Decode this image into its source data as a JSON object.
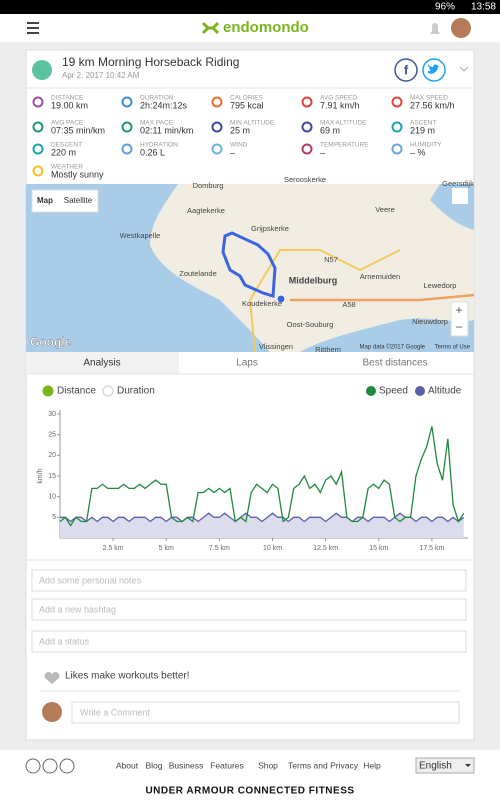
{
  "status_bar": {
    "battery": "96%",
    "time": "13:58"
  },
  "header": {
    "logo": "endomondo"
  },
  "workout": {
    "title": "19 km Morning Horseback Riding",
    "date": "Apr 2, 2017 10:42 AM",
    "stats": [
      {
        "label": "DISTANCE",
        "value": "19.00 km"
      },
      {
        "label": "DURATION",
        "value": "2h:24m:12s"
      },
      {
        "label": "CALORIES",
        "value": "795 kcal"
      },
      {
        "label": "AVG SPEED",
        "value": "7.91 km/h"
      },
      {
        "label": "MAX SPEED",
        "value": "27.56 km/h"
      },
      {
        "label": "AVG PACE",
        "value": "07:35 min/km"
      },
      {
        "label": "MAX PACE",
        "value": "02:11 min/km"
      },
      {
        "label": "MIN ALTITUDE",
        "value": "25 m"
      },
      {
        "label": "MAX ALTITUDE",
        "value": "69 m"
      },
      {
        "label": "ASCENT",
        "value": "219 m"
      },
      {
        "label": "DESCENT",
        "value": "220 m"
      },
      {
        "label": "HYDRATION",
        "value": "0.26 L"
      },
      {
        "label": "WIND",
        "value": "–"
      },
      {
        "label": "TEMPERATURE",
        "value": "–"
      },
      {
        "label": "HUMIDITY",
        "value": "– %"
      },
      {
        "label": "WEATHER",
        "value": "Mostly sunny"
      }
    ]
  },
  "map": {
    "tabs": [
      "Map",
      "Satellite"
    ],
    "labels": [
      "Domburg",
      "Serooskerke",
      "Veere",
      "Aagtekerke",
      "Grijpskerke",
      "Westkapelle",
      "Zoutelande",
      "Middelburg",
      "Arnemuiden",
      "Lewedorp",
      "Koudekerke",
      "Oost-Souburg",
      "Nieuwdorp",
      "Vlissingen",
      "Ritthem",
      "Geersdijk",
      "N57",
      "A58"
    ],
    "attribution": "Map data ©2017 Google",
    "terms": "Terms of Use",
    "logo": "Google"
  },
  "tabs": [
    "Analysis",
    "Laps",
    "Best distances"
  ],
  "x_modes": [
    "Distance",
    "Duration"
  ],
  "chart_data": {
    "type": "line",
    "y_label": "km/h",
    "x": [
      0,
      0.25,
      0.5,
      0.75,
      1,
      1.25,
      1.5,
      1.75,
      2,
      2.25,
      2.5,
      2.75,
      3,
      3.25,
      3.5,
      3.75,
      4,
      4.25,
      4.5,
      4.75,
      5,
      5.25,
      5.5,
      5.75,
      6,
      6.25,
      6.5,
      6.75,
      7,
      7.25,
      7.5,
      7.75,
      8,
      8.25,
      8.5,
      8.75,
      9,
      9.25,
      9.5,
      9.75,
      10,
      10.25,
      10.5,
      10.75,
      11,
      11.25,
      11.5,
      11.75,
      12,
      12.25,
      12.5,
      12.75,
      13,
      13.25,
      13.5,
      13.75,
      14,
      14.25,
      14.5,
      14.75,
      15,
      15.25,
      15.5,
      15.75,
      16,
      16.25,
      16.5,
      16.75,
      17,
      17.25,
      17.5,
      17.75,
      18,
      18.25,
      18.5,
      18.75,
      19
    ],
    "series": [
      {
        "name": "Speed",
        "color": "#1e8a3c",
        "values": [
          4,
          5,
          3,
          5,
          4,
          4,
          12,
          12,
          13,
          12,
          12,
          12,
          13,
          12,
          12,
          13,
          12,
          13,
          14,
          13,
          13,
          5,
          4,
          4,
          5,
          4,
          11,
          11,
          12,
          11,
          12,
          11,
          12,
          4,
          5,
          4,
          11,
          13,
          12,
          11,
          13,
          12,
          4,
          5,
          12,
          13,
          15,
          12,
          13,
          11,
          14,
          15,
          13,
          16,
          5,
          4,
          4,
          5,
          12,
          13,
          12,
          14,
          13,
          5,
          4,
          5,
          5,
          15,
          19,
          22,
          27,
          18,
          14,
          24,
          8,
          4,
          6
        ]
      },
      {
        "name": "Altitude",
        "color": "#5b60a8",
        "values": [
          5,
          5,
          4,
          5,
          5,
          4,
          5,
          4,
          5,
          5,
          4,
          5,
          5,
          4,
          5,
          5,
          5,
          4,
          5,
          5,
          4,
          5,
          5,
          4,
          5,
          5,
          4,
          5,
          6,
          5,
          5,
          6,
          5,
          4,
          5,
          6,
          5,
          5,
          4,
          5,
          6,
          5,
          5,
          4,
          5,
          5,
          4,
          5,
          5,
          5,
          4,
          5,
          6,
          5,
          5,
          4,
          5,
          5,
          4,
          5,
          5,
          5,
          4,
          5,
          6,
          5,
          5,
          4,
          5,
          5,
          4,
          5,
          5,
          4,
          5,
          4,
          5
        ]
      }
    ],
    "xlim": [
      0,
      19.2
    ],
    "ylim": [
      0,
      30
    ],
    "xticks": [
      {
        "value": 2.5,
        "label": "2.5 km"
      },
      {
        "value": 5,
        "label": "5 km"
      },
      {
        "value": 7.5,
        "label": "7.5 km"
      },
      {
        "value": 10,
        "label": "10 km"
      },
      {
        "value": 12.5,
        "label": "12.5 km"
      },
      {
        "value": 15,
        "label": "15 km"
      },
      {
        "value": 17.5,
        "label": "17.5 km"
      }
    ],
    "yticks": [
      5,
      10,
      15,
      20,
      25,
      30
    ]
  },
  "inputs": [
    "Add some personal notes",
    "Add a new hashtag",
    "Add a status"
  ],
  "likes": "Likes make workouts better!",
  "comment_placeholder": "Write a Comment",
  "footer": {
    "links": [
      "About",
      "Blog",
      "Business",
      "Features",
      "Shop",
      "Terms and Privacy",
      "Help"
    ],
    "language": "English",
    "brand": "UNDER ARMOUR CONNECTED FITNESS"
  }
}
